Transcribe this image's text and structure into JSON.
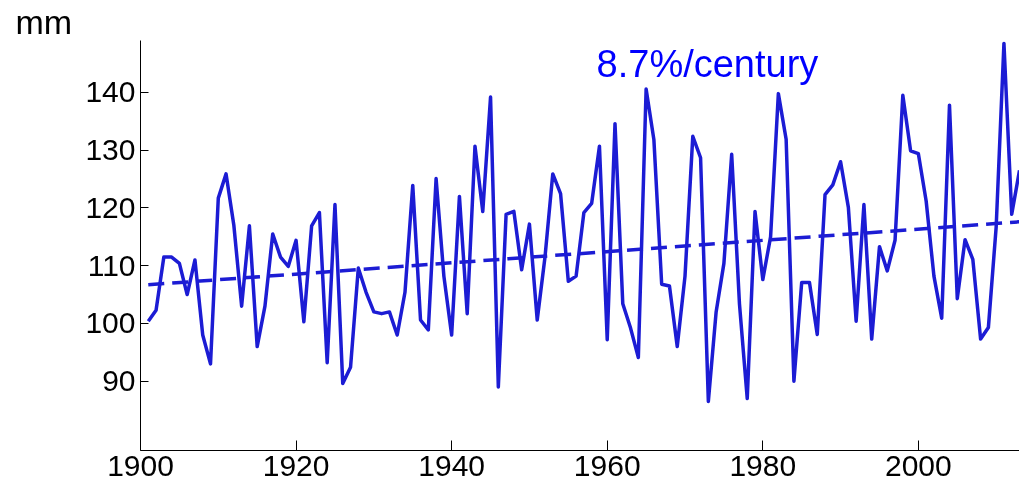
{
  "chart_data": {
    "type": "line",
    "ylabel": "mm",
    "annotations": [
      "8.7%/century"
    ],
    "x": [
      1901,
      1902,
      1903,
      1904,
      1905,
      1906,
      1907,
      1908,
      1909,
      1910,
      1911,
      1912,
      1913,
      1914,
      1915,
      1916,
      1917,
      1918,
      1919,
      1920,
      1921,
      1922,
      1923,
      1924,
      1925,
      1926,
      1927,
      1928,
      1929,
      1930,
      1931,
      1932,
      1933,
      1934,
      1935,
      1936,
      1937,
      1938,
      1939,
      1940,
      1941,
      1942,
      1943,
      1944,
      1945,
      1946,
      1947,
      1948,
      1949,
      1950,
      1951,
      1952,
      1953,
      1954,
      1955,
      1956,
      1957,
      1958,
      1959,
      1960,
      1961,
      1962,
      1963,
      1964,
      1965,
      1966,
      1967,
      1968,
      1969,
      1970,
      1971,
      1972,
      1973,
      1974,
      1975,
      1976,
      1977,
      1978,
      1979,
      1980,
      1981,
      1982,
      1983,
      1984,
      1985,
      1986,
      1987,
      1988,
      1989,
      1990,
      1991,
      1992,
      1993,
      1994,
      1995,
      1996,
      1997,
      1998,
      1999,
      2000,
      2001,
      2002,
      2003,
      2004,
      2005,
      2006,
      2007,
      2008,
      2009,
      2010,
      2011,
      2012,
      2013
    ],
    "series": [
      {
        "color": "#1c1cd4",
        "line_style": "solid",
        "values": [
          100.4,
          102.3,
          111.5,
          111.5,
          110.4,
          105,
          111,
          98,
          93,
          121.7,
          125.9,
          117,
          103,
          116.9,
          96,
          103,
          115.5,
          111.5,
          109.9,
          114.4,
          100.3,
          116.9,
          119.2,
          93.2,
          120.6,
          89.6,
          92.4,
          109.6,
          105.4,
          102,
          101.7,
          102,
          98,
          105.4,
          123.9,
          100.6,
          98.9,
          125.1,
          108.2,
          98,
          122,
          101.7,
          130.7,
          119.4,
          139.2,
          89,
          118.9,
          119.4,
          109.3,
          117.2,
          100.6,
          111.5,
          125.9,
          122.5,
          107.3,
          108.2,
          119.2,
          120.8,
          130.7,
          97.2,
          134.6,
          103.4,
          99.2,
          94.1,
          140.6,
          131.8,
          106.8,
          106.5,
          96,
          108.2,
          132.4,
          128.7,
          86.5,
          102,
          110.4,
          129.3,
          103.4,
          87,
          119.4,
          107.6,
          115,
          139.8,
          131.9,
          90,
          107.1,
          107.1,
          98.1,
          122.3,
          124,
          128,
          120.1,
          100.4,
          120.6,
          97.3,
          113.3,
          109.1,
          114.4,
          139.5,
          129.9,
          129.4,
          121.2,
          108.2,
          100.9,
          137.8,
          104.3,
          114.5,
          111.1,
          97.3,
          99.3,
          116.7,
          148.5,
          118.9,
          126.5
        ]
      },
      {
        "color": "#1c1cd4",
        "line_style": "dashed",
        "x": [
          1901,
          2013
        ],
        "values": [
          106.7,
          117.6
        ]
      }
    ],
    "xlim": [
      1900,
      2013
    ],
    "ylim": [
      78,
      149
    ],
    "xticks": [
      1900,
      1920,
      1940,
      1960,
      1980,
      2000
    ],
    "yticks": [
      90,
      100,
      110,
      120,
      130,
      140
    ],
    "grid": false
  }
}
